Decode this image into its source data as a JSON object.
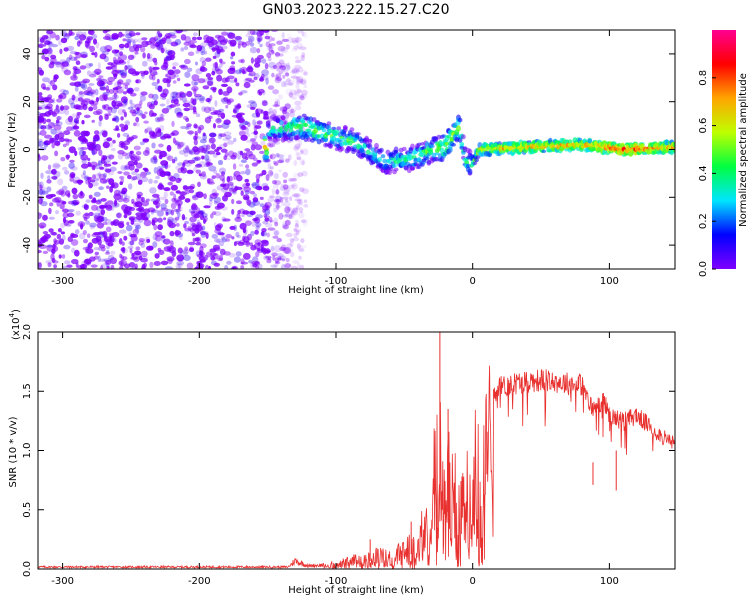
{
  "title": "GN03.2023.222.15.27.C20",
  "chart_data": [
    {
      "type": "heatmap",
      "xlabel": "Height of straight line (km)",
      "ylabel": "Frequency (Hz)",
      "xlim": [
        -318,
        148
      ],
      "ylim": [
        -50,
        50
      ],
      "x_ticks": [
        -300,
        -200,
        -100,
        0,
        100
      ],
      "y_ticks": [
        -40,
        -20,
        0,
        20,
        40
      ],
      "colorbar": {
        "label": "Normalized spectral amplitude",
        "range": [
          0.0,
          1.0
        ],
        "ticks": [
          0.0,
          0.2,
          0.4,
          0.6,
          0.8
        ],
        "colors": [
          "#7f00ff",
          "#0000ff",
          "#00e5ff",
          "#00ff40",
          "#bfff00",
          "#ffa500",
          "#ff0000",
          "#ff0090"
        ]
      },
      "ridge": [
        {
          "x": -150,
          "f": 8,
          "amp": 0.45
        },
        {
          "x": -125,
          "f": 10,
          "amp": 0.6
        },
        {
          "x": -105,
          "f": 6,
          "amp": 0.55
        },
        {
          "x": -85,
          "f": 3,
          "amp": 0.5
        },
        {
          "x": -65,
          "f": -5,
          "amp": 0.45
        },
        {
          "x": -45,
          "f": -4,
          "amp": 0.5
        },
        {
          "x": -30,
          "f": 0,
          "amp": 0.55
        },
        {
          "x": -20,
          "f": 1,
          "amp": 0.65
        },
        {
          "x": -10,
          "f": 10,
          "amp": 0.6
        },
        {
          "x": -5,
          "f": -5,
          "amp": 0.5
        },
        {
          "x": 0,
          "f": -6,
          "amp": 0.5
        },
        {
          "x": 5,
          "f": 0,
          "amp": 0.75
        },
        {
          "x": 40,
          "f": 1,
          "amp": 0.8
        },
        {
          "x": 80,
          "f": 2,
          "amp": 0.8
        },
        {
          "x": 110,
          "f": 0,
          "amp": 0.95
        },
        {
          "x": 148,
          "f": 1,
          "amp": 0.8
        }
      ]
    },
    {
      "type": "line",
      "xlabel": "Height of straight line (km)",
      "ylabel": "SNR (10 * v/v)",
      "yscale_label": "(x10",
      "yscale_exp": "4",
      "yscale_close": ")",
      "xlim": [
        -318,
        148
      ],
      "ylim": [
        0.0,
        2.0
      ],
      "x_ticks": [
        -300,
        -200,
        -100,
        0,
        100
      ],
      "y_ticks": [
        0.0,
        0.5,
        1.0,
        1.5,
        2.0
      ],
      "color": "#e8302e",
      "envelope": {
        "x": [
          -318,
          -200,
          -135,
          -130,
          -120,
          -100,
          -80,
          -70,
          -60,
          -50,
          -40,
          -35,
          -30,
          -25,
          -20,
          -15,
          -10,
          -5,
          0,
          5,
          10,
          15,
          20,
          30,
          40,
          50,
          60,
          70,
          80,
          85,
          90,
          95,
          100,
          110,
          120,
          130,
          140,
          148
        ],
        "y": [
          0.02,
          0.02,
          0.02,
          0.08,
          0.03,
          0.05,
          0.12,
          0.15,
          0.12,
          0.2,
          0.3,
          0.45,
          0.8,
          1.2,
          1.0,
          0.9,
          0.7,
          0.75,
          0.9,
          1.3,
          1.5,
          1.55,
          1.6,
          1.63,
          1.65,
          1.66,
          1.65,
          1.63,
          1.62,
          1.45,
          1.4,
          1.5,
          1.35,
          1.3,
          1.35,
          1.25,
          1.15,
          1.1
        ]
      },
      "spikes": [
        {
          "x": -24,
          "y": 2.05
        },
        {
          "x": -18,
          "y": 1.35
        },
        {
          "x": -45,
          "y": 0.4
        },
        {
          "x": -75,
          "y": 0.25
        },
        {
          "x": 88,
          "y": 0.9
        },
        {
          "x": 105,
          "y": 1.0
        }
      ]
    }
  ]
}
